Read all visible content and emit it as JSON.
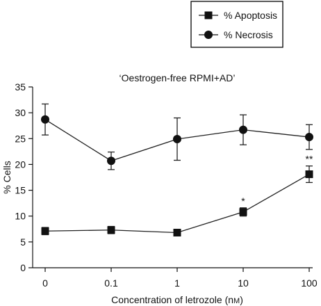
{
  "chart_data": {
    "type": "line",
    "title": "‘Oestrogen-free RPMI+AD’",
    "xlabel": "Concentration of letrozole (nM)",
    "ylabel": "% Cells",
    "x_scale": "log",
    "categories": [
      "0",
      "0.1",
      "1",
      "10",
      "100"
    ],
    "ylim": [
      0,
      35
    ],
    "yticks": [
      0,
      5,
      10,
      15,
      20,
      25,
      30,
      35
    ],
    "grid": false,
    "legend_position": "top-right",
    "series": [
      {
        "name": "% Apoptosis",
        "marker": "square",
        "values": [
          7.1,
          7.3,
          6.8,
          10.8,
          18.1
        ],
        "errors": [
          0.7,
          0.7,
          0.5,
          0.8,
          1.6
        ],
        "annotations": [
          "",
          "",
          "",
          "*",
          "**"
        ]
      },
      {
        "name": "% Necrosis",
        "marker": "circle",
        "values": [
          28.7,
          20.7,
          24.9,
          26.7,
          25.3
        ],
        "errors": [
          3.0,
          1.7,
          4.1,
          2.9,
          2.4
        ],
        "annotations": [
          "",
          "",
          "",
          "",
          ""
        ]
      }
    ],
    "colors": {
      "line": "#222222",
      "marker": "#111111"
    }
  }
}
